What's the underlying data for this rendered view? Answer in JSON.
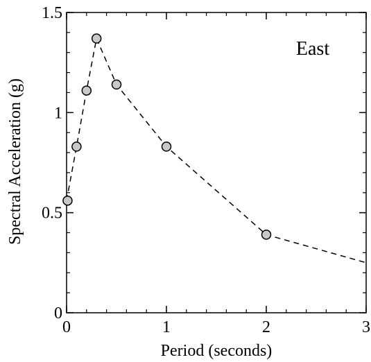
{
  "chart_data": {
    "type": "scatter",
    "xlabel": "Period (seconds)",
    "ylabel": "Spectral Acceleration (g)",
    "annotation": "East",
    "xlim": [
      0,
      3
    ],
    "ylim": [
      0,
      1.5
    ],
    "x_ticks": [
      {
        "value": 0,
        "label": "0"
      },
      {
        "value": 1,
        "label": "1"
      },
      {
        "value": 2,
        "label": "2"
      },
      {
        "value": 3,
        "label": "3"
      }
    ],
    "y_ticks": [
      {
        "value": 0,
        "label": "0"
      },
      {
        "value": 0.5,
        "label": "0.5"
      },
      {
        "value": 1,
        "label": "1"
      },
      {
        "value": 1.5,
        "label": "1.5"
      }
    ],
    "points": [
      {
        "x": 0.01,
        "y": 0.56
      },
      {
        "x": 0.1,
        "y": 0.83
      },
      {
        "x": 0.2,
        "y": 1.11
      },
      {
        "x": 0.3,
        "y": 1.37
      },
      {
        "x": 0.5,
        "y": 1.14
      },
      {
        "x": 1.0,
        "y": 0.83
      },
      {
        "x": 2.0,
        "y": 0.39
      }
    ],
    "curve": [
      {
        "x": 0.0,
        "y": 0.56
      },
      {
        "x": 0.1,
        "y": 0.83
      },
      {
        "x": 0.2,
        "y": 1.11
      },
      {
        "x": 0.3,
        "y": 1.37
      },
      {
        "x": 0.5,
        "y": 1.14
      },
      {
        "x": 1.0,
        "y": 0.83
      },
      {
        "x": 2.0,
        "y": 0.39
      },
      {
        "x": 3.0,
        "y": 0.25
      }
    ],
    "grid": false,
    "colors": {
      "marker_fill": "#c8c8c8",
      "marker_stroke": "#000000",
      "line": "#000000"
    }
  }
}
